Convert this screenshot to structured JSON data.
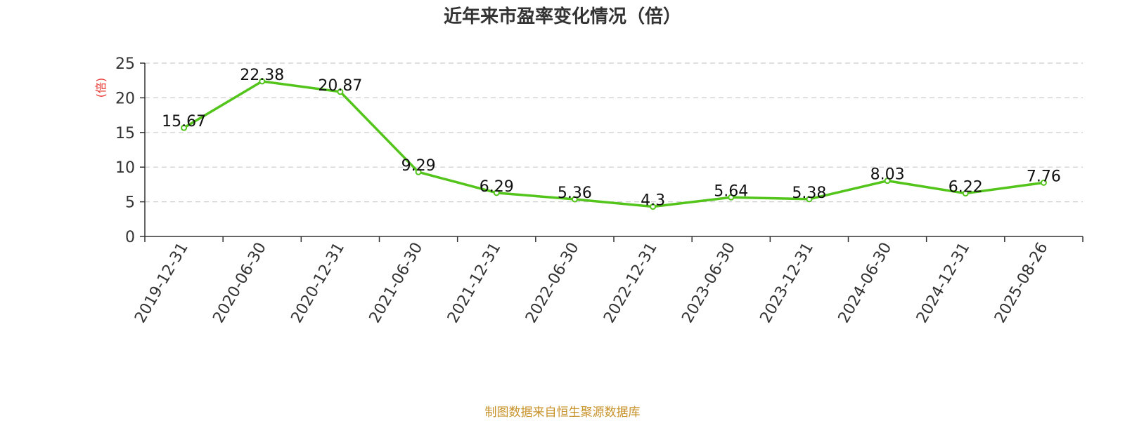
{
  "chart_data": {
    "type": "line",
    "title": "近年来市盈率变化情况（倍）",
    "ylabel": "(倍)",
    "xlabel": "",
    "categories": [
      "2019-12-31",
      "2020-06-30",
      "2020-12-31",
      "2021-06-30",
      "2021-12-31",
      "2022-06-30",
      "2022-12-31",
      "2023-06-30",
      "2023-12-31",
      "2024-06-30",
      "2024-12-31",
      "2025-08-26"
    ],
    "series": [
      {
        "values": [
          15.67,
          22.38,
          20.87,
          9.29,
          6.29,
          5.36,
          4.3,
          5.64,
          5.38,
          8.03,
          6.22,
          7.76
        ],
        "labels": [
          "15.67",
          "22.38",
          "20.87",
          "9.29",
          "6.29",
          "5.36",
          "4.3",
          "5.64",
          "5.38",
          "8.03",
          "6.22",
          "7.76"
        ],
        "color": "#52c41a"
      }
    ],
    "yticks": [
      "0",
      "5",
      "10",
      "15",
      "20",
      "25"
    ],
    "ylim": [
      0,
      25
    ],
    "grid": true,
    "legend": "none"
  },
  "source": "制图数据来自恒生聚源数据库",
  "colors": {
    "line": "#52c41a",
    "axis": "#333333",
    "grid": "#cccccc",
    "ylabel": "#e8322b",
    "source": "#c8922a"
  }
}
